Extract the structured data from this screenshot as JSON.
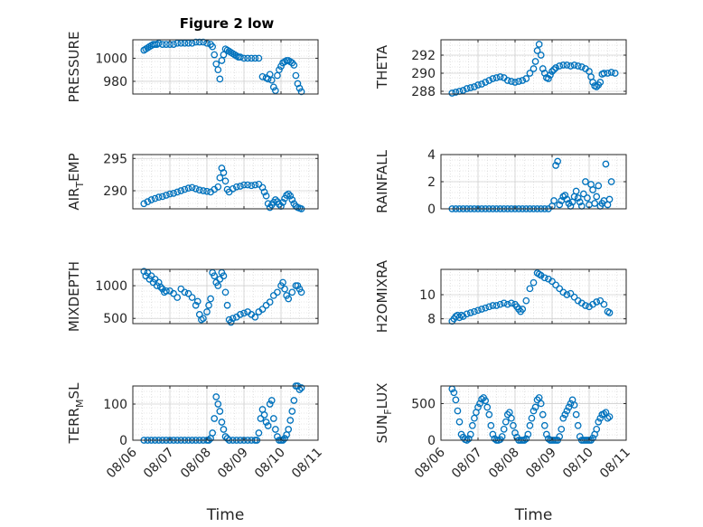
{
  "title": "Figure 2 low",
  "marker_color": "#0072BD",
  "x_tick_labels": [
    "08/06",
    "08/07",
    "08/08",
    "08/09",
    "08/10",
    "08/11"
  ],
  "chart_data": [
    {
      "type": "scatter",
      "ylabel": "PRESSURE",
      "xlim": [
        0,
        5
      ],
      "ylim": [
        969,
        1016
      ],
      "yticks": [
        980,
        1000
      ],
      "xlabel": "",
      "grid": true,
      "x": [
        0.3,
        0.35,
        0.4,
        0.45,
        0.5,
        0.55,
        0.6,
        0.65,
        0.7,
        0.8,
        0.9,
        1.0,
        1.1,
        1.2,
        1.3,
        1.4,
        1.5,
        1.6,
        1.7,
        1.8,
        1.9,
        2.0,
        2.1,
        2.15,
        2.2,
        2.25,
        2.3,
        2.35,
        2.4,
        2.45,
        2.5,
        2.55,
        2.6,
        2.65,
        2.7,
        2.75,
        2.8,
        2.85,
        2.9,
        3.0,
        3.1,
        3.2,
        3.3,
        3.4,
        3.5,
        3.6,
        3.65,
        3.7,
        3.75,
        3.8,
        3.85,
        3.9,
        3.95,
        4.0,
        4.05,
        4.1,
        4.15,
        4.2,
        4.25,
        4.3,
        4.35,
        4.4,
        4.45,
        4.5,
        4.55
      ],
      "y": [
        1007,
        1008,
        1009,
        1010,
        1011,
        1012,
        1012,
        1012,
        1013,
        1012,
        1012,
        1012,
        1012,
        1013,
        1013,
        1013,
        1013,
        1013,
        1014,
        1014,
        1014,
        1013,
        1012,
        1010,
        1003,
        995,
        990,
        982,
        998,
        1003,
        1008,
        1007,
        1006,
        1005,
        1004,
        1003,
        1002,
        1001,
        1001,
        1000,
        1000,
        1000,
        1000,
        1000,
        984,
        983,
        982,
        986,
        981,
        975,
        972,
        985,
        990,
        993,
        996,
        997,
        998,
        998,
        997,
        996,
        994,
        985,
        978,
        974,
        971
      ]
    },
    {
      "type": "scatter",
      "ylabel": "THETA",
      "xlim": [
        0,
        5
      ],
      "ylim": [
        287.7,
        293.7
      ],
      "yticks": [
        288,
        290,
        292
      ],
      "xlabel": "",
      "grid": true,
      "x": [
        0.3,
        0.4,
        0.5,
        0.6,
        0.7,
        0.8,
        0.9,
        1.0,
        1.1,
        1.2,
        1.3,
        1.4,
        1.5,
        1.6,
        1.7,
        1.8,
        1.9,
        2.0,
        2.1,
        2.2,
        2.3,
        2.4,
        2.5,
        2.55,
        2.6,
        2.65,
        2.7,
        2.75,
        2.8,
        2.85,
        2.9,
        2.95,
        3.0,
        3.05,
        3.1,
        3.2,
        3.3,
        3.4,
        3.5,
        3.6,
        3.7,
        3.8,
        3.9,
        4.0,
        4.05,
        4.1,
        4.15,
        4.2,
        4.25,
        4.3,
        4.35,
        4.4,
        4.5,
        4.6,
        4.7
      ],
      "y": [
        287.8,
        287.9,
        288.0,
        288.1,
        288.3,
        288.4,
        288.5,
        288.7,
        288.8,
        289.0,
        289.2,
        289.4,
        289.5,
        289.6,
        289.5,
        289.2,
        289.1,
        289.0,
        289.1,
        289.2,
        289.4,
        290.0,
        290.5,
        291.3,
        292.5,
        293.2,
        292.0,
        290.5,
        290.0,
        289.5,
        289.4,
        289.8,
        290.2,
        290.4,
        290.6,
        290.8,
        290.9,
        290.9,
        290.8,
        290.9,
        290.8,
        290.7,
        290.5,
        290.2,
        289.6,
        289.0,
        288.6,
        288.5,
        288.7,
        289.0,
        289.9,
        290.0,
        290.0,
        290.1,
        290.0
      ]
    },
    {
      "type": "scatter",
      "ylabel": "AIR_TEMP",
      "xlim": [
        0,
        5
      ],
      "ylim": [
        287.2,
        295.6
      ],
      "yticks": [
        290,
        295
      ],
      "xlabel": "",
      "grid": true,
      "x": [
        0.3,
        0.4,
        0.5,
        0.6,
        0.7,
        0.8,
        0.9,
        1.0,
        1.1,
        1.2,
        1.3,
        1.4,
        1.5,
        1.6,
        1.7,
        1.8,
        1.9,
        2.0,
        2.1,
        2.2,
        2.3,
        2.35,
        2.4,
        2.45,
        2.5,
        2.55,
        2.6,
        2.7,
        2.8,
        2.9,
        3.0,
        3.1,
        3.2,
        3.3,
        3.4,
        3.5,
        3.55,
        3.6,
        3.65,
        3.7,
        3.75,
        3.8,
        3.85,
        3.9,
        3.95,
        4.0,
        4.05,
        4.1,
        4.15,
        4.2,
        4.25,
        4.3,
        4.35,
        4.4,
        4.45,
        4.5,
        4.55
      ],
      "y": [
        288.0,
        288.3,
        288.6,
        288.8,
        289.0,
        289.1,
        289.3,
        289.5,
        289.6,
        289.8,
        290.0,
        290.2,
        290.4,
        290.5,
        290.3,
        290.1,
        290.0,
        289.9,
        289.8,
        290.2,
        290.6,
        292.0,
        293.5,
        292.8,
        291.5,
        290.2,
        289.8,
        290.3,
        290.6,
        290.7,
        290.9,
        290.9,
        290.8,
        290.9,
        291.0,
        290.5,
        289.8,
        289.2,
        288.0,
        287.4,
        287.8,
        288.2,
        288.6,
        288.3,
        287.9,
        287.6,
        288.2,
        288.8,
        289.3,
        289.5,
        289.2,
        288.6,
        288.0,
        287.6,
        287.4,
        287.3,
        287.2
      ]
    },
    {
      "type": "scatter",
      "ylabel": "RAINFALL",
      "xlim": [
        0,
        5
      ],
      "ylim": [
        0,
        4
      ],
      "yticks": [
        0,
        2,
        4
      ],
      "xlabel": "",
      "grid": true,
      "x": [
        0.3,
        0.4,
        0.5,
        0.6,
        0.7,
        0.8,
        0.9,
        1.0,
        1.1,
        1.2,
        1.3,
        1.4,
        1.5,
        1.6,
        1.7,
        1.8,
        1.9,
        2.0,
        2.1,
        2.2,
        2.3,
        2.4,
        2.5,
        2.6,
        2.7,
        2.8,
        2.9,
        3.0,
        3.05,
        3.1,
        3.15,
        3.2,
        3.25,
        3.3,
        3.35,
        3.4,
        3.45,
        3.5,
        3.55,
        3.6,
        3.65,
        3.7,
        3.75,
        3.8,
        3.85,
        3.9,
        3.95,
        4.0,
        4.05,
        4.1,
        4.15,
        4.2,
        4.25,
        4.3,
        4.35,
        4.4,
        4.45,
        4.5,
        4.55,
        4.6
      ],
      "y": [
        0,
        0,
        0,
        0,
        0,
        0,
        0,
        0,
        0,
        0,
        0,
        0,
        0,
        0,
        0,
        0,
        0,
        0,
        0,
        0,
        0,
        0,
        0,
        0,
        0,
        0,
        0,
        0.2,
        0.6,
        3.2,
        3.5,
        0.3,
        0.6,
        0.9,
        1.0,
        0.7,
        0.4,
        0.2,
        0.5,
        0.9,
        1.3,
        0.8,
        0.5,
        0.2,
        1.1,
        2.0,
        0.8,
        0.3,
        1.8,
        1.4,
        0.4,
        0.9,
        1.7,
        0.2,
        0.4,
        0.6,
        3.3,
        0.3,
        0.7,
        2.0
      ]
    },
    {
      "type": "scatter",
      "ylabel": "MIXDEPTH",
      "xlim": [
        0,
        5
      ],
      "ylim": [
        420,
        1250
      ],
      "yticks": [
        500,
        1000
      ],
      "xlabel": "",
      "grid": true,
      "x": [
        0.3,
        0.35,
        0.4,
        0.45,
        0.5,
        0.55,
        0.6,
        0.65,
        0.7,
        0.75,
        0.8,
        0.85,
        0.9,
        1.0,
        1.1,
        1.2,
        1.3,
        1.4,
        1.5,
        1.6,
        1.7,
        1.75,
        1.8,
        1.85,
        1.9,
        2.0,
        2.05,
        2.1,
        2.15,
        2.2,
        2.25,
        2.3,
        2.35,
        2.4,
        2.45,
        2.5,
        2.55,
        2.6,
        2.65,
        2.7,
        2.8,
        2.9,
        3.0,
        3.1,
        3.2,
        3.3,
        3.4,
        3.5,
        3.6,
        3.7,
        3.8,
        3.9,
        4.0,
        4.05,
        4.1,
        4.15,
        4.2,
        4.3,
        4.4,
        4.45,
        4.5,
        4.55
      ],
      "y": [
        1220,
        1150,
        1200,
        1100,
        1150,
        1050,
        1100,
        1000,
        1050,
        980,
        950,
        900,
        920,
        920,
        880,
        820,
        950,
        900,
        880,
        820,
        700,
        760,
        560,
        480,
        500,
        600,
        700,
        800,
        1200,
        1150,
        1050,
        1000,
        1100,
        1200,
        1150,
        900,
        700,
        480,
        440,
        500,
        520,
        560,
        580,
        600,
        560,
        520,
        600,
        640,
        700,
        750,
        850,
        900,
        1000,
        1050,
        950,
        850,
        800,
        900,
        1000,
        1000,
        950,
        900
      ]
    },
    {
      "type": "scatter",
      "ylabel": "H2OMIXRA",
      "xlim": [
        0,
        5
      ],
      "ylim": [
        7.6,
        12.1
      ],
      "yticks": [
        8,
        10
      ],
      "xlabel": "",
      "grid": true,
      "x": [
        0.3,
        0.35,
        0.4,
        0.45,
        0.5,
        0.55,
        0.6,
        0.7,
        0.8,
        0.9,
        1.0,
        1.1,
        1.2,
        1.3,
        1.4,
        1.5,
        1.6,
        1.7,
        1.8,
        1.9,
        2.0,
        2.05,
        2.1,
        2.15,
        2.2,
        2.3,
        2.4,
        2.5,
        2.6,
        2.65,
        2.7,
        2.8,
        2.9,
        3.0,
        3.1,
        3.2,
        3.3,
        3.4,
        3.5,
        3.6,
        3.7,
        3.8,
        3.9,
        4.0,
        4.1,
        4.2,
        4.3,
        4.4,
        4.5,
        4.55
      ],
      "y": [
        7.8,
        8.0,
        8.2,
        8.3,
        8.1,
        8.3,
        8.2,
        8.4,
        8.5,
        8.6,
        8.7,
        8.8,
        8.9,
        9.0,
        9.1,
        9.1,
        9.2,
        9.3,
        9.2,
        9.3,
        9.2,
        9.0,
        8.8,
        8.6,
        8.8,
        9.5,
        10.5,
        11.0,
        11.8,
        11.7,
        11.6,
        11.4,
        11.3,
        11.1,
        10.8,
        10.5,
        10.2,
        10.0,
        10.1,
        9.8,
        9.5,
        9.3,
        9.1,
        9.0,
        9.2,
        9.4,
        9.5,
        9.2,
        8.6,
        8.5
      ]
    },
    {
      "type": "scatter",
      "ylabel": "TERR_MSL",
      "xlim": [
        0,
        5
      ],
      "ylim": [
        0,
        150
      ],
      "yticks": [
        0,
        100
      ],
      "xlabel": "Time",
      "grid": true,
      "x": [
        0.3,
        0.4,
        0.5,
        0.6,
        0.7,
        0.8,
        0.9,
        1.0,
        1.1,
        1.2,
        1.3,
        1.4,
        1.5,
        1.6,
        1.7,
        1.8,
        1.9,
        2.0,
        2.05,
        2.1,
        2.15,
        2.2,
        2.25,
        2.3,
        2.35,
        2.4,
        2.45,
        2.5,
        2.55,
        2.6,
        2.7,
        2.8,
        2.9,
        3.0,
        3.1,
        3.2,
        3.3,
        3.35,
        3.4,
        3.45,
        3.5,
        3.55,
        3.6,
        3.65,
        3.7,
        3.75,
        3.8,
        3.85,
        3.9,
        3.95,
        4.0,
        4.05,
        4.1,
        4.15,
        4.2,
        4.25,
        4.3,
        4.35,
        4.4,
        4.45,
        4.5,
        4.55
      ],
      "y": [
        0,
        0,
        0,
        0,
        0,
        0,
        0,
        0,
        0,
        0,
        0,
        0,
        0,
        0,
        0,
        0,
        0,
        0,
        0,
        5,
        20,
        60,
        120,
        100,
        80,
        50,
        30,
        10,
        5,
        0,
        0,
        0,
        0,
        0,
        0,
        0,
        0,
        0,
        20,
        60,
        85,
        70,
        50,
        40,
        100,
        110,
        60,
        30,
        10,
        0,
        0,
        0,
        5,
        15,
        30,
        55,
        80,
        110,
        150,
        150,
        140,
        145
      ]
    },
    {
      "type": "scatter",
      "ylabel": "SUN_FLUX",
      "xlim": [
        0,
        5
      ],
      "ylim": [
        0,
        740
      ],
      "yticks": [
        0,
        500
      ],
      "xlabel": "Time",
      "grid": true,
      "x": [
        0.3,
        0.35,
        0.4,
        0.45,
        0.5,
        0.55,
        0.6,
        0.65,
        0.7,
        0.75,
        0.8,
        0.85,
        0.9,
        0.95,
        1.0,
        1.05,
        1.1,
        1.15,
        1.2,
        1.25,
        1.3,
        1.35,
        1.4,
        1.45,
        1.5,
        1.55,
        1.6,
        1.65,
        1.7,
        1.75,
        1.8,
        1.85,
        1.9,
        1.95,
        2.0,
        2.05,
        2.1,
        2.15,
        2.2,
        2.25,
        2.3,
        2.35,
        2.4,
        2.45,
        2.5,
        2.55,
        2.6,
        2.65,
        2.7,
        2.75,
        2.8,
        2.85,
        2.9,
        2.95,
        3.0,
        3.05,
        3.1,
        3.15,
        3.2,
        3.25,
        3.3,
        3.35,
        3.4,
        3.45,
        3.5,
        3.55,
        3.6,
        3.65,
        3.7,
        3.75,
        3.8,
        3.85,
        3.9,
        3.95,
        4.0,
        4.05,
        4.1,
        4.15,
        4.2,
        4.25,
        4.3,
        4.35,
        4.4,
        4.45,
        4.5,
        4.55
      ],
      "y": [
        700,
        650,
        550,
        400,
        250,
        80,
        40,
        10,
        0,
        20,
        80,
        200,
        300,
        380,
        450,
        500,
        560,
        580,
        540,
        450,
        350,
        200,
        80,
        20,
        0,
        0,
        10,
        50,
        150,
        250,
        350,
        380,
        300,
        200,
        100,
        40,
        0,
        0,
        0,
        0,
        20,
        80,
        200,
        300,
        400,
        450,
        550,
        580,
        500,
        350,
        200,
        80,
        20,
        0,
        0,
        0,
        0,
        0,
        50,
        150,
        300,
        350,
        400,
        450,
        500,
        550,
        480,
        350,
        200,
        50,
        0,
        0,
        0,
        0,
        0,
        0,
        30,
        80,
        150,
        250,
        300,
        350,
        360,
        380,
        300,
        320
      ]
    }
  ]
}
